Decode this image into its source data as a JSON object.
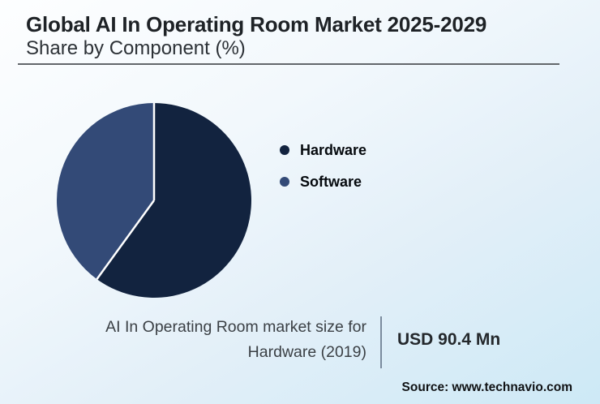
{
  "header": {
    "title": "Global AI In Operating Room Market 2025-2029",
    "subtitle": "Share by Component (%)"
  },
  "chart_data": {
    "type": "pie",
    "title": "Global AI In Operating Room Market 2025-2029",
    "subtitle": "Share by Component (%)",
    "unit": "%",
    "direction": "clockwise",
    "start_angle_deg": 0,
    "legend_position": "right",
    "series": [
      {
        "name": "Hardware",
        "value": 60,
        "color": "#12233f"
      },
      {
        "name": "Software",
        "value": 40,
        "color": "#334a77"
      }
    ],
    "divider_color": "#ffffff"
  },
  "stat": {
    "label_line1": "AI In Operating Room market size for",
    "label_line2": "Hardware (2019)",
    "value": "USD 90.4 Mn"
  },
  "footer": {
    "source": "Source: www.technavio.com"
  }
}
